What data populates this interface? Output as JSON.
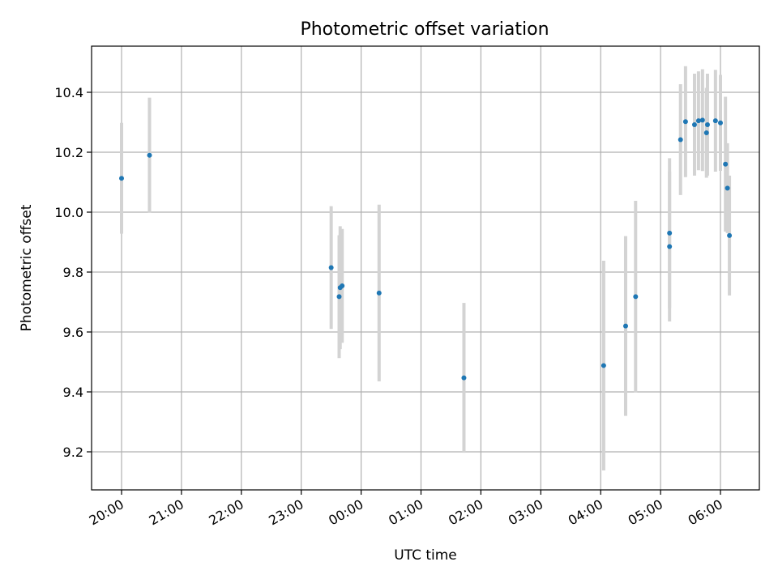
{
  "chart_data": {
    "type": "scatter",
    "title": "Photometric offset variation",
    "xlabel": "UTC time",
    "ylabel": "Photometric offset",
    "x_ticks": [
      "20:00",
      "21:00",
      "22:00",
      "23:00",
      "00:00",
      "01:00",
      "02:00",
      "03:00",
      "04:00",
      "05:00",
      "06:00"
    ],
    "y_ticks": [
      "9.2",
      "9.4",
      "9.6",
      "9.8",
      "10.0",
      "10.2",
      "10.4"
    ],
    "grid": true,
    "colors": {
      "point": "#1f77b4",
      "errorbar": "#d3d3d3",
      "grid": "#b0b0b0"
    },
    "series": [
      {
        "points": [
          {
            "t": "20:00",
            "y": 10.113,
            "err": 0.185
          },
          {
            "t": "20:28",
            "y": 10.19,
            "err": 0.192
          },
          {
            "t": "23:30",
            "y": 9.815,
            "err": 0.205
          },
          {
            "t": "23:38",
            "y": 9.718,
            "err": 0.205
          },
          {
            "t": "23:39",
            "y": 9.748,
            "err": 0.205
          },
          {
            "t": "23:41",
            "y": 9.754,
            "err": 0.19
          },
          {
            "t": "00:18",
            "y": 9.73,
            "err": 0.295
          },
          {
            "t": "01:43",
            "y": 9.447,
            "err": 0.25
          },
          {
            "t": "04:03",
            "y": 9.488,
            "err": 0.35
          },
          {
            "t": "04:25",
            "y": 9.62,
            "err": 0.3
          },
          {
            "t": "04:35",
            "y": 9.718,
            "err": 0.32
          },
          {
            "t": "05:09",
            "y": 9.885,
            "err": 0.25
          },
          {
            "t": "05:09",
            "y": 9.93,
            "err": 0.25
          },
          {
            "t": "05:20",
            "y": 10.242,
            "err": 0.185
          },
          {
            "t": "05:25",
            "y": 10.302,
            "err": 0.185
          },
          {
            "t": "05:34",
            "y": 10.292,
            "err": 0.17
          },
          {
            "t": "05:38",
            "y": 10.305,
            "err": 0.165
          },
          {
            "t": "05:42",
            "y": 10.307,
            "err": 0.17
          },
          {
            "t": "05:46",
            "y": 10.265,
            "err": 0.15
          },
          {
            "t": "05:47",
            "y": 10.292,
            "err": 0.17
          },
          {
            "t": "05:55",
            "y": 10.305,
            "err": 0.17
          },
          {
            "t": "06:00",
            "y": 10.298,
            "err": 0.16
          },
          {
            "t": "06:05",
            "y": 10.16,
            "err": 0.225
          },
          {
            "t": "06:07",
            "y": 10.08,
            "err": 0.15
          },
          {
            "t": "06:09",
            "y": 9.922,
            "err": 0.2
          }
        ]
      }
    ]
  }
}
